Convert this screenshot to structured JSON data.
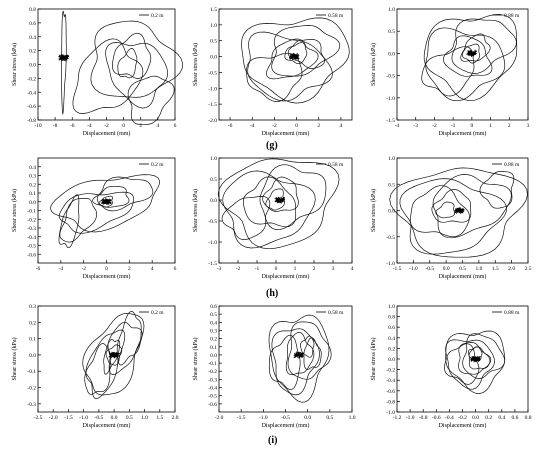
{
  "row_labels": [
    "(g)",
    "(h)",
    "(i)"
  ],
  "chart_data": [
    {
      "type": "scatter",
      "row": 0,
      "col": 0,
      "legend": "0.2 m",
      "xlabel": "Displacement (mm)",
      "ylabel": "Shear stress (kPa)",
      "xlim": [
        -10,
        6
      ],
      "ylim": [
        -0.8,
        0.8
      ],
      "xticks": [
        -10,
        -8,
        -6,
        -4,
        -2,
        0,
        2,
        4,
        6
      ],
      "xtick_labels": [
        "-10",
        "-8",
        "-6",
        "-4",
        "-2",
        "0",
        "2",
        "4",
        "6"
      ],
      "yticks": [
        -0.8,
        -0.6,
        -0.4,
        -0.2,
        0,
        0.2,
        0.4,
        0.6,
        0.8
      ],
      "ytick_labels": [
        "-0.8",
        "-0.6",
        "-0.4",
        "-0.2",
        "0.0",
        "0.2",
        "0.4",
        "0.6",
        "0.8"
      ],
      "loops": [
        [
          -7,
          0.1,
          0.25,
          0.7,
          -0.2,
          1
        ],
        [
          3,
          -0.5,
          2.6,
          0.35,
          0.3,
          1
        ],
        [
          1,
          0.05,
          5,
          0.55,
          -0.05,
          1
        ],
        [
          -2,
          -0.2,
          4,
          0.5,
          0.3,
          1
        ],
        [
          1,
          0.1,
          2.2,
          0.3,
          0.1,
          1
        ],
        [
          0.5,
          0.0,
          1.2,
          0.2,
          0.4,
          1
        ],
        [
          1.5,
          -0.1,
          3.5,
          0.45,
          -0.2,
          1
        ]
      ]
    },
    {
      "type": "scatter",
      "row": 0,
      "col": 1,
      "legend": "0.58 m",
      "xlabel": "Displacement (mm)",
      "ylabel": "Shear stress (kPa)",
      "xlim": [
        -7,
        5
      ],
      "ylim": [
        -2.0,
        1.5
      ],
      "xticks": [
        -6,
        -4,
        -2,
        0,
        2,
        4
      ],
      "xtick_labels": [
        "-6",
        "-4",
        "-2",
        "0",
        "2",
        "4"
      ],
      "yticks": [
        -2.0,
        -1.5,
        -1.0,
        -0.5,
        0,
        0.5,
        1.0,
        1.5
      ],
      "ytick_labels": [
        "-2.0",
        "-1.5",
        "-1.0",
        "-0.5",
        "0.0",
        "0.5",
        "1.0",
        "1.5"
      ],
      "loops": [
        [
          -0.2,
          0.0,
          4.8,
          1.25,
          0.1,
          1
        ],
        [
          -1,
          -0.3,
          3.8,
          1.0,
          -0.2,
          1
        ],
        [
          0.5,
          0.2,
          3,
          0.8,
          0.3,
          1
        ],
        [
          -0.5,
          -0.1,
          2.3,
          0.6,
          0.4,
          1
        ],
        [
          1,
          0.1,
          1.6,
          0.45,
          -0.3,
          1
        ],
        [
          0,
          0.1,
          1,
          0.3,
          0.2,
          1
        ],
        [
          -2,
          -0.6,
          2.5,
          0.7,
          0.1,
          1
        ]
      ]
    },
    {
      "type": "scatter",
      "row": 0,
      "col": 2,
      "legend": "0.88 m",
      "xlabel": "Displacement (mm)",
      "ylabel": "Shear stress (kPa)",
      "xlim": [
        -4,
        3
      ],
      "ylim": [
        -1.5,
        1.0
      ],
      "xticks": [
        -4,
        -3,
        -2,
        -1,
        0,
        1,
        2,
        3
      ],
      "xtick_labels": [
        "-4",
        "-3",
        "-2",
        "-1",
        "0",
        "1",
        "2",
        "3"
      ],
      "yticks": [
        -1.5,
        -1.0,
        -0.5,
        0,
        0.5,
        1.0
      ],
      "ytick_labels": [
        "-1.5",
        "-1.0",
        "-0.5",
        "0.0",
        "0.5",
        "1.0"
      ],
      "loops": [
        [
          0,
          0.0,
          2.5,
          0.9,
          0.15,
          1
        ],
        [
          -0.5,
          -0.2,
          2.1,
          0.75,
          0.0,
          1
        ],
        [
          0.5,
          0.2,
          1.7,
          0.6,
          0.3,
          1
        ],
        [
          -0.2,
          -0.1,
          1.2,
          0.45,
          -0.2,
          1
        ],
        [
          0.2,
          0.1,
          0.8,
          0.3,
          0.5,
          1
        ],
        [
          0,
          0.0,
          0.45,
          0.2,
          0.1,
          1
        ],
        [
          -1.2,
          -0.4,
          1.5,
          0.5,
          0.4,
          1
        ]
      ]
    },
    {
      "type": "scatter",
      "row": 1,
      "col": 0,
      "legend": "0.2 m",
      "xlabel": "Displacement (mm)",
      "ylabel": "Shear stress (kPa)",
      "xlim": [
        -6,
        6
      ],
      "ylim": [
        -0.7,
        0.5
      ],
      "xticks": [
        -6,
        -4,
        -2,
        0,
        2,
        4,
        6
      ],
      "xtick_labels": [
        "-6",
        "-4",
        "-2",
        "0",
        "2",
        "4",
        "6"
      ],
      "yticks": [
        -0.6,
        -0.5,
        -0.4,
        -0.3,
        -0.2,
        -0.1,
        0,
        0.1,
        0.2,
        0.3,
        0.4
      ],
      "ytick_labels": [
        "-0.6",
        "-0.5",
        "-0.4",
        "-0.3",
        "-0.2",
        "-0.1",
        "0.0",
        "0.1",
        "0.2",
        "0.3",
        "0.4"
      ],
      "loops": [
        [
          0,
          0.0,
          4.8,
          0.3,
          0.35,
          1
        ],
        [
          -1,
          -0.1,
          3.5,
          0.22,
          0.4,
          1
        ],
        [
          1.5,
          0.1,
          2.5,
          0.18,
          0.3,
          1
        ],
        [
          -2.5,
          -0.2,
          1.8,
          0.25,
          0.6,
          1
        ],
        [
          0.5,
          0.05,
          1.5,
          0.12,
          0.2,
          1
        ],
        [
          0,
          0.0,
          0.6,
          0.06,
          0.3,
          1
        ],
        [
          -3.2,
          -0.25,
          1.2,
          0.28,
          0.8,
          1
        ]
      ]
    },
    {
      "type": "scatter",
      "row": 1,
      "col": 1,
      "legend": "0.58 m",
      "xlabel": "Displacement (mm)",
      "ylabel": "Shear stress (kPa)",
      "xlim": [
        -3,
        4
      ],
      "ylim": [
        -1.5,
        1.0
      ],
      "xticks": [
        -3,
        -2,
        -1,
        0,
        1,
        2,
        3,
        4
      ],
      "xtick_labels": [
        "-3",
        "-2",
        "-1",
        "0",
        "1",
        "2",
        "3",
        "4"
      ],
      "yticks": [
        -1.5,
        -1.0,
        -0.5,
        0,
        0.5,
        1.0
      ],
      "ytick_labels": [
        "-1.5",
        "-1.0",
        "-0.5",
        "0.0",
        "0.5",
        "1.0"
      ],
      "loops": [
        [
          0.2,
          0.0,
          2.9,
          1.05,
          0.1,
          1
        ],
        [
          -0.5,
          -0.2,
          2.3,
          0.85,
          0.0,
          1
        ],
        [
          0.8,
          0.1,
          1.8,
          0.7,
          0.3,
          1
        ],
        [
          -0.3,
          -0.1,
          1.4,
          0.55,
          -0.2,
          1
        ],
        [
          0.3,
          0.1,
          0.9,
          0.4,
          0.2,
          1
        ],
        [
          0,
          0.0,
          0.5,
          0.25,
          0.5,
          1
        ],
        [
          -1.5,
          -0.4,
          1.2,
          0.5,
          0.3,
          1
        ]
      ]
    },
    {
      "type": "scatter",
      "row": 1,
      "col": 2,
      "legend": "0.88 m",
      "xlabel": "Displacement (mm)",
      "ylabel": "Shear stress (kPa)",
      "xlim": [
        -1.5,
        2.5
      ],
      "ylim": [
        -1.0,
        1.0
      ],
      "xticks": [
        -1.5,
        -1.0,
        -0.5,
        0,
        0.5,
        1.0,
        1.5,
        2.0,
        2.5
      ],
      "xtick_labels": [
        "-1.5",
        "-1.0",
        "-0.5",
        "0.0",
        "0.5",
        "1.0",
        "1.5",
        "2.0",
        "2.5"
      ],
      "yticks": [
        -1.0,
        -0.5,
        0,
        0.5,
        1.0
      ],
      "ytick_labels": [
        "-1.0",
        "-0.5",
        "0.0",
        "0.5",
        "1.0"
      ],
      "loops": [
        [
          0.4,
          0.0,
          1.9,
          0.85,
          0.1,
          1
        ],
        [
          0.1,
          -0.1,
          1.5,
          0.7,
          0.0,
          1
        ],
        [
          0.7,
          0.1,
          1.2,
          0.55,
          0.3,
          1
        ],
        [
          -0.2,
          -0.05,
          0.9,
          0.45,
          -0.2,
          1
        ],
        [
          0.2,
          0.05,
          0.6,
          0.3,
          0.2,
          1
        ],
        [
          0,
          0.0,
          0.3,
          0.15,
          0.5,
          1
        ],
        [
          1.6,
          0.4,
          0.5,
          0.35,
          0.4,
          1
        ]
      ]
    },
    {
      "type": "scatter",
      "row": 2,
      "col": 0,
      "legend": "0.2 m",
      "xlabel": "Displacement (mm)",
      "ylabel": "Shear stress (kPa)",
      "xlim": [
        -2.5,
        2.0
      ],
      "ylim": [
        -0.35,
        0.3
      ],
      "xticks": [
        -2.5,
        -2.0,
        -1.5,
        -1.0,
        -0.5,
        0,
        0.5,
        1.0,
        1.5,
        2.0
      ],
      "xtick_labels": [
        "-2.5",
        "-2.0",
        "-1.5",
        "-1.0",
        "-0.5",
        "0.0",
        "0.5",
        "1.0",
        "1.5",
        "2.0"
      ],
      "yticks": [
        -0.3,
        -0.2,
        -0.1,
        0,
        0.1,
        0.2,
        0.3
      ],
      "ytick_labels": [
        "-0.3",
        "-0.2",
        "-0.1",
        "0.0",
        "0.1",
        "0.2",
        "0.3"
      ],
      "loops": [
        [
          0,
          0.0,
          1.1,
          0.25,
          0.6,
          1
        ],
        [
          -0.3,
          -0.05,
          0.8,
          0.2,
          0.8,
          1
        ],
        [
          0.3,
          0.05,
          0.6,
          0.15,
          0.5,
          1
        ],
        [
          -0.1,
          0.0,
          0.4,
          0.1,
          0.9,
          1
        ],
        [
          0.5,
          0.1,
          0.5,
          0.15,
          0.7,
          1
        ],
        [
          -0.5,
          -0.1,
          0.5,
          0.15,
          0.6,
          1
        ],
        [
          0,
          0.0,
          0.25,
          0.06,
          0.3,
          1
        ]
      ]
    },
    {
      "type": "scatter",
      "row": 2,
      "col": 1,
      "legend": "0.58 m",
      "xlabel": "Displacement (mm)",
      "ylabel": "Shear stress (kPa)",
      "xlim": [
        -2.0,
        1.0
      ],
      "ylim": [
        -0.7,
        0.6
      ],
      "xticks": [
        -2.0,
        -1.5,
        -1.0,
        -0.5,
        0,
        0.5,
        1.0
      ],
      "xtick_labels": [
        "-2.0",
        "-1.5",
        "-1.0",
        "-0.5",
        "0.0",
        "0.5",
        "1.0"
      ],
      "yticks": [
        -0.6,
        -0.5,
        -0.4,
        -0.3,
        -0.2,
        -0.1,
        0,
        0.1,
        0.2,
        0.3,
        0.4,
        0.5,
        0.6
      ],
      "ytick_labels": [
        "-0.6",
        "-0.5",
        "-0.4",
        "-0.3",
        "-0.2",
        "-0.1",
        "0.0",
        "0.1",
        "0.2",
        "0.3",
        "0.4",
        "0.5",
        "0.6"
      ],
      "loops": [
        [
          -0.2,
          0.0,
          0.65,
          0.5,
          0.1,
          1
        ],
        [
          -0.3,
          -0.05,
          0.5,
          0.4,
          0.2,
          1
        ],
        [
          0,
          0.05,
          0.45,
          0.35,
          0.0,
          1
        ],
        [
          -0.2,
          0.0,
          0.3,
          0.25,
          0.3,
          1
        ],
        [
          0.1,
          0.0,
          0.2,
          0.18,
          0.5,
          1
        ],
        [
          -0.5,
          -0.1,
          0.35,
          0.3,
          0.2,
          1
        ],
        [
          0,
          0.1,
          0.15,
          0.12,
          0.4,
          1
        ]
      ]
    },
    {
      "type": "scatter",
      "row": 2,
      "col": 2,
      "legend": "0.88 m",
      "xlabel": "Displacement (mm)",
      "ylabel": "Shear stress (kPa)",
      "xlim": [
        -1.2,
        0.8
      ],
      "ylim": [
        -1.0,
        1.0
      ],
      "xticks": [
        -1.2,
        -1.0,
        -0.8,
        -0.6,
        -0.4,
        -0.2,
        0,
        0.2,
        0.4,
        0.6,
        0.8
      ],
      "xtick_labels": [
        "-1.2",
        "-1.0",
        "-0.8",
        "-0.6",
        "-0.4",
        "-0.2",
        "0.0",
        "0.2",
        "0.4",
        "0.6",
        "0.8"
      ],
      "yticks": [
        -1.0,
        -0.8,
        -0.6,
        -0.4,
        -0.2,
        0,
        0.2,
        0.4,
        0.6,
        0.8,
        1.0
      ],
      "ytick_labels": [
        "-1.0",
        "-0.8",
        "-0.6",
        "-0.4",
        "-0.2",
        "0.0",
        "0.2",
        "0.4",
        "0.6",
        "0.8",
        "1.0"
      ],
      "loops": [
        [
          0,
          0.0,
          0.45,
          0.55,
          0.1,
          1
        ],
        [
          -0.1,
          -0.05,
          0.35,
          0.45,
          0.2,
          1
        ],
        [
          0.1,
          0.05,
          0.3,
          0.4,
          0.0,
          1
        ],
        [
          -0.05,
          0.0,
          0.22,
          0.3,
          0.3,
          1
        ],
        [
          0.05,
          0.0,
          0.15,
          0.2,
          0.5,
          1
        ],
        [
          -0.2,
          -0.1,
          0.25,
          0.35,
          0.2,
          1
        ],
        [
          0,
          0.1,
          0.1,
          0.12,
          0.4,
          1
        ]
      ]
    }
  ]
}
